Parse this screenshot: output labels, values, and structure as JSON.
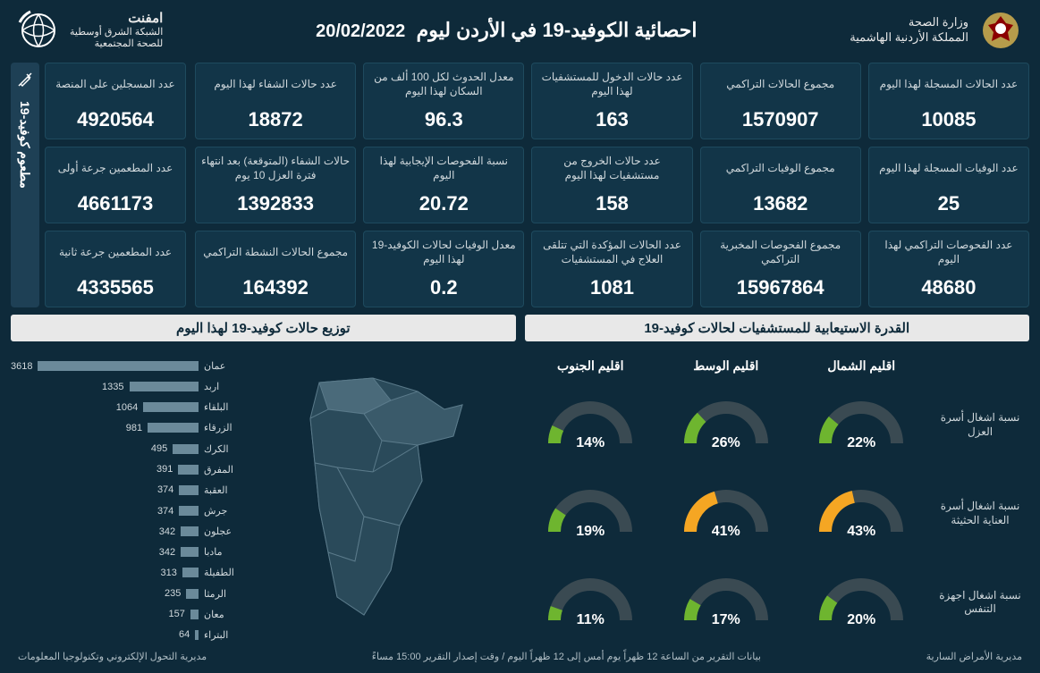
{
  "header": {
    "ministry_line1": "وزارة الصحة",
    "ministry_line2": "المملكة الأردنية الهاشمية",
    "title": "احصائية الكوفيد-19 في الأردن ليوم",
    "date": "20/02/2022",
    "network_line1": "امفنت",
    "network_line2": "الشبكة الشرق أوسطية",
    "network_line3": "للصحة المجتمعية"
  },
  "colors": {
    "bg": "#0e2a3a",
    "card_bg": "#123548",
    "card_border": "#1e4a5e",
    "accent_bg": "#1e4055",
    "panel_title_bg": "#e8e8e8",
    "panel_title_fg": "#0e2a3a",
    "text": "#e8e8e8",
    "text_muted": "#d0d8dc",
    "bar_fill": "#6b8a9a",
    "gauge_track": "#3a4a52",
    "gauge_green": "#6eb52f",
    "gauge_orange": "#f5a623"
  },
  "stats": [
    {
      "label": "عدد الحالات المسجلة لهذا اليوم",
      "value": "10085"
    },
    {
      "label": "مجموع الحالات التراكمي",
      "value": "1570907"
    },
    {
      "label": "عدد حالات الدخول للمستشفيات لهذا اليوم",
      "value": "163"
    },
    {
      "label": "معدل الحدوث لكل 100 ألف من السكان لهذا اليوم",
      "value": "96.3"
    },
    {
      "label": "عدد حالات الشفاء لهذا اليوم",
      "value": "18872"
    },
    {
      "label": "عدد الوفيات المسجلة لهذا اليوم",
      "value": "25"
    },
    {
      "label": "مجموع الوفيات التراكمي",
      "value": "13682"
    },
    {
      "label": "عدد حالات الخروج من مستشفيات لهذا اليوم",
      "value": "158"
    },
    {
      "label": "نسبة الفحوصات الإيجابية لهذا اليوم",
      "value": "20.72"
    },
    {
      "label": "حالات الشفاء (المتوقعة) بعد انتهاء فترة العزل 10 يوم",
      "value": "1392833"
    },
    {
      "label": "عدد الفحوصات التراكمي لهذا اليوم",
      "value": "48680"
    },
    {
      "label": "مجموع الفحوصات المخبرية التراكمي",
      "value": "15967864"
    },
    {
      "label": "عدد الحالات المؤكدة التي تتلقى العلاج في المستشفيات",
      "value": "1081"
    },
    {
      "label": "معدل الوفيات لحالات الكوفيد-19 لهذا اليوم",
      "value": "0.2"
    },
    {
      "label": "مجموع الحالات النشطة التراكمي",
      "value": "164392"
    }
  ],
  "vaccine": {
    "side_label": "مطعوم كوفيد-19",
    "cards": [
      {
        "label": "عدد المسجلين على المنصة",
        "value": "4920564"
      },
      {
        "label": "عدد المطعمين جرعة أولى",
        "value": "4661173"
      },
      {
        "label": "عدد المطعمين جرعة ثانية",
        "value": "4335565"
      }
    ]
  },
  "capacity": {
    "title": "القدرة الاستيعابية للمستشفيات لحالات كوفيد-19",
    "regions": [
      "اقليم الشمال",
      "اقليم الوسط",
      "اقليم الجنوب"
    ],
    "rows": [
      {
        "label": "نسبة اشغال أسرة العزل",
        "values": [
          22,
          26,
          14
        ],
        "colors": [
          "green",
          "green",
          "green"
        ]
      },
      {
        "label": "نسبة اشغال أسرة العناية الحثيثة",
        "values": [
          43,
          41,
          19
        ],
        "colors": [
          "orange",
          "orange",
          "green"
        ]
      },
      {
        "label": "نسبة اشغال اجهزة التنفس",
        "values": [
          20,
          17,
          11
        ],
        "colors": [
          "green",
          "green",
          "green"
        ]
      }
    ],
    "orange_threshold": 40
  },
  "distribution": {
    "title": "توزيع حالات كوفيد-19 لهذا اليوم",
    "max": 3618,
    "items": [
      {
        "name": "عمان",
        "value": 3618
      },
      {
        "name": "اربد",
        "value": 1335
      },
      {
        "name": "البلقاء",
        "value": 1064
      },
      {
        "name": "الزرقاء",
        "value": 981
      },
      {
        "name": "الكرك",
        "value": 495
      },
      {
        "name": "المفرق",
        "value": 391
      },
      {
        "name": "العقبة",
        "value": 374
      },
      {
        "name": "جرش",
        "value": 374
      },
      {
        "name": "عجلون",
        "value": 342
      },
      {
        "name": "مادبا",
        "value": 342
      },
      {
        "name": "الطفيلة",
        "value": 313
      },
      {
        "name": "الرمثا",
        "value": 235
      },
      {
        "name": "معان",
        "value": 157
      },
      {
        "name": "البتراء",
        "value": 64
      }
    ]
  },
  "footer": {
    "right": "مديرية الأمراض السارية",
    "center": "بيانات التقرير من الساعة 12 ظهراً يوم أمس إلى 12 ظهراً اليوم / وقت إصدار التقرير 15:00 مساءً",
    "left": "مديرية التحول الإلكتروني وتكنولوجيا المعلومات"
  }
}
